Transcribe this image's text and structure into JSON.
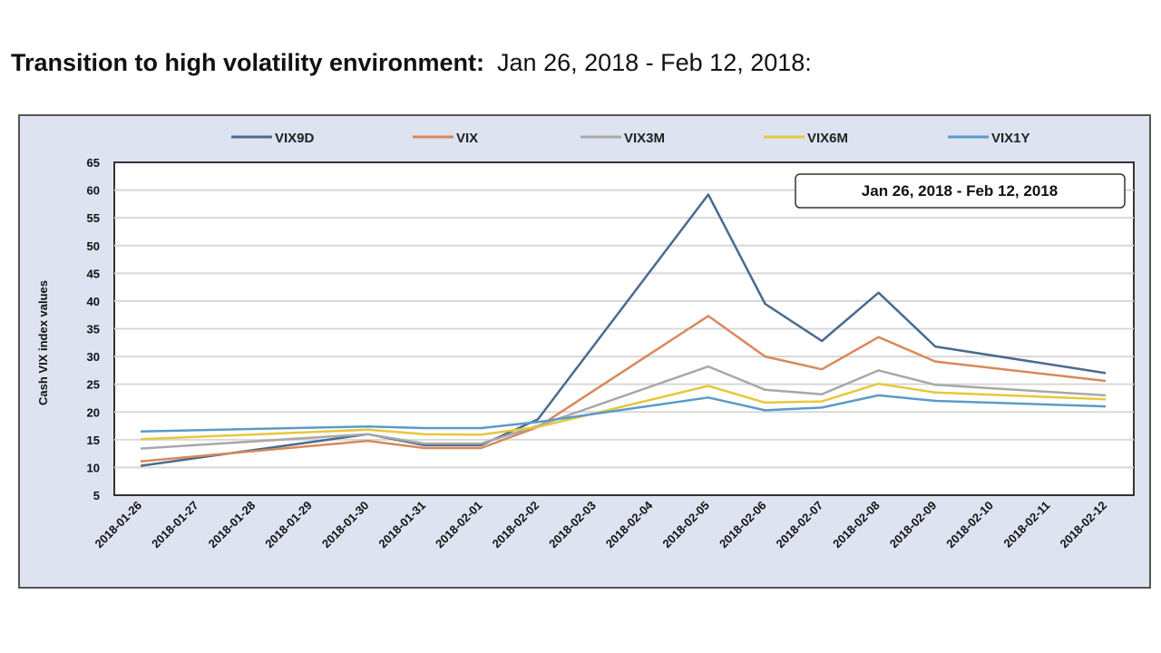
{
  "heading": {
    "bold": "Transition to high volatility environment:",
    "range": "Jan 26, 2018  -  Feb 12, 2018:"
  },
  "chart_data": {
    "type": "line",
    "ylabel": "Cash VIX index values",
    "xlabel": "",
    "ylim": [
      5,
      65
    ],
    "yticks": [
      "5",
      "10",
      "15",
      "20",
      "25",
      "30",
      "35",
      "40",
      "45",
      "50",
      "55",
      "60",
      "65"
    ],
    "grid": true,
    "legend": "top",
    "annotation": "Jan 26, 2018  -  Feb 12, 2018",
    "categories": [
      "2018-01-26",
      "2018-01-27",
      "2018-01-28",
      "2018-01-29",
      "2018-01-30",
      "2018-01-31",
      "2018-02-01",
      "2018-02-02",
      "2018-02-03",
      "2018-02-04",
      "2018-02-05",
      "2018-02-06",
      "2018-02-07",
      "2018-02-08",
      "2018-02-09",
      "2018-02-10",
      "2018-02-11",
      "2018-02-12"
    ],
    "series": [
      {
        "name": "VIX9D",
        "color": "#4a6a8f",
        "values": [
          10.3,
          null,
          null,
          null,
          16.0,
          14.0,
          14.0,
          18.7,
          null,
          null,
          59.2,
          39.5,
          32.8,
          41.5,
          31.8,
          null,
          null,
          27.0
        ]
      },
      {
        "name": "VIX",
        "color": "#d9885a",
        "values": [
          11.1,
          null,
          null,
          null,
          14.8,
          13.5,
          13.5,
          17.3,
          null,
          null,
          37.3,
          30.0,
          27.7,
          33.5,
          29.1,
          null,
          null,
          25.6
        ]
      },
      {
        "name": "VIX3M",
        "color": "#a8a8a8",
        "values": [
          13.4,
          null,
          null,
          null,
          16.0,
          14.3,
          14.3,
          17.5,
          null,
          null,
          28.2,
          24.0,
          23.2,
          27.5,
          24.9,
          null,
          null,
          23.0
        ]
      },
      {
        "name": "VIX6M",
        "color": "#e6c83a",
        "values": [
          15.1,
          null,
          null,
          null,
          16.8,
          16.0,
          15.9,
          17.3,
          null,
          null,
          24.7,
          21.7,
          21.9,
          25.1,
          23.5,
          null,
          null,
          22.3
        ]
      },
      {
        "name": "VIX1Y",
        "color": "#5b9bc8",
        "values": [
          16.5,
          null,
          null,
          null,
          17.4,
          17.1,
          17.1,
          18.2,
          null,
          null,
          22.6,
          20.3,
          20.8,
          23.0,
          22.0,
          null,
          null,
          21.0
        ]
      }
    ]
  }
}
